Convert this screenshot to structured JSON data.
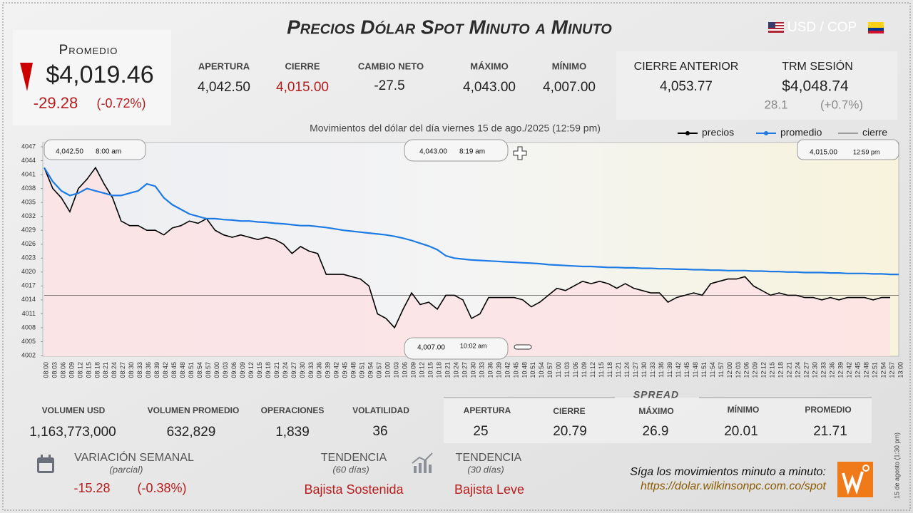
{
  "header": {
    "title": "Precios Dólar Spot Minuto a Minuto",
    "pair": "USD / COP"
  },
  "promedio": {
    "label": "Promedio",
    "value": "$4,019.46",
    "change": "-29.28",
    "change_pct": "(-0.72%)"
  },
  "summary": [
    {
      "label": "APERTURA",
      "value": "4,042.50"
    },
    {
      "label": "CIERRE",
      "value": "4,015.00"
    },
    {
      "label": "CAMBIO NETO",
      "value": "-27.5"
    },
    {
      "label": "MÁXIMO",
      "value": "4,043.00"
    },
    {
      "label": "MÍNIMO",
      "value": "4,007.00"
    }
  ],
  "previous": {
    "label": "CIERRE ANTERIOR",
    "value": "4,053.77"
  },
  "trm": {
    "label": "TRM SESIÓN",
    "value": "$4,048.74",
    "change": "28.1",
    "change_pct": "(+0.7%)"
  },
  "chart_data": {
    "type": "line",
    "title": "Movimientos del dólar del día viernes 15 de ago./2025 (12:59 pm)",
    "x": [
      "08:00",
      "08:03",
      "08:06",
      "08:09",
      "08:12",
      "08:15",
      "08:18",
      "08:21",
      "08:24",
      "08:27",
      "08:30",
      "08:33",
      "08:36",
      "08:39",
      "08:42",
      "08:45",
      "08:48",
      "08:51",
      "08:54",
      "08:57",
      "09:00",
      "09:03",
      "09:06",
      "09:09",
      "09:12",
      "09:15",
      "09:18",
      "09:21",
      "09:24",
      "09:27",
      "09:30",
      "09:33",
      "09:36",
      "09:39",
      "09:42",
      "09:45",
      "09:48",
      "09:51",
      "09:54",
      "09:57",
      "10:00",
      "10:03",
      "10:06",
      "10:09",
      "10:12",
      "10:15",
      "10:18",
      "10:21",
      "10:24",
      "10:27",
      "10:30",
      "10:33",
      "10:36",
      "10:39",
      "10:42",
      "10:45",
      "10:48",
      "10:51",
      "10:54",
      "10:57",
      "11:00",
      "11:03",
      "11:06",
      "11:09",
      "11:12",
      "11:15",
      "11:18",
      "11:21",
      "11:24",
      "11:27",
      "11:30",
      "11:33",
      "11:36",
      "11:39",
      "11:42",
      "11:45",
      "11:48",
      "11:51",
      "11:54",
      "11:57",
      "12:00",
      "12:03",
      "12:06",
      "12:09",
      "12:12",
      "12:15",
      "12:18",
      "12:21",
      "12:24",
      "12:27",
      "12:30",
      "12:33",
      "12:36",
      "12:39",
      "12:42",
      "12:45",
      "12:48",
      "12:51",
      "12:54",
      "12:57",
      "13:00"
    ],
    "series": [
      {
        "name": "precios",
        "color": "#000000",
        "values": [
          4042.5,
          4038,
          4036,
          4033,
          4038,
          4040,
          4042.5,
          4039,
          4036,
          4031,
          4030,
          4030,
          4029,
          4029,
          4028,
          4029.5,
          4030,
          4031,
          4030.5,
          4031.5,
          4029,
          4028,
          4027.5,
          4028,
          4027.5,
          4027,
          4027.5,
          4027,
          4026,
          4024,
          4025.5,
          4024.5,
          4024,
          4019.5,
          4019.5,
          4019.5,
          4019,
          4018.5,
          4017,
          4011,
          4010,
          4008,
          4012,
          4015.5,
          4013,
          4013.5,
          4012,
          4015,
          4015,
          4014,
          4010,
          4011,
          4014.5,
          4014.5,
          4014.5,
          4014.5,
          4014,
          4012.5,
          4013.5,
          4015,
          4016.5,
          4016,
          4017,
          4018,
          4017.5,
          4018,
          4017.5,
          4016.5,
          4017.5,
          4016.5,
          4016,
          4015.5,
          4015.5,
          4013.5,
          4014.5,
          4015,
          4015.5,
          4015,
          4017.5,
          4018,
          4018.5,
          4018.5,
          4019,
          4017,
          4016,
          4015,
          4015.5,
          4015,
          4015,
          4014.5,
          4014.5,
          4014,
          4014.5,
          4014,
          4014.5,
          4014.5,
          4014.5,
          4014,
          4014.5,
          4014.5,
          null
        ]
      },
      {
        "name": "promedio",
        "color": "#1e7be6",
        "values": [
          4042.5,
          4039.5,
          4037.5,
          4036.5,
          4037,
          4038,
          4037.5,
          4037,
          4036.5,
          4036.5,
          4037,
          4037.5,
          4039,
          4038.5,
          4036,
          4034.5,
          4033.5,
          4032.5,
          4032,
          4031.5,
          4031.5,
          4031.3,
          4031.2,
          4031,
          4031,
          4030.8,
          4030.7,
          4030.5,
          4030.4,
          4030.2,
          4030,
          4030,
          4029.8,
          4029.6,
          4029.3,
          4029,
          4028.8,
          4028.6,
          4028.4,
          4028.2,
          4028,
          4027.7,
          4027.3,
          4026.8,
          4026.2,
          4025.6,
          4024.8,
          4023.5,
          4023,
          4022.8,
          4022.6,
          4022.5,
          4022.4,
          4022.3,
          4022.2,
          4022.1,
          4022,
          4021.9,
          4021.8,
          4021.6,
          4021.5,
          4021.4,
          4021.3,
          4021.2,
          4021.2,
          4021.1,
          4021,
          4021,
          4020.9,
          4020.9,
          4020.8,
          4020.8,
          4020.7,
          4020.7,
          4020.6,
          4020.6,
          4020.5,
          4020.5,
          4020.4,
          4020.4,
          4020.3,
          4020.3,
          4020.3,
          4020.2,
          4020.2,
          4020.1,
          4020.1,
          4020,
          4020,
          4019.9,
          4019.9,
          4019.9,
          4019.8,
          4019.8,
          4019.7,
          4019.7,
          4019.7,
          4019.6,
          4019.6,
          4019.5,
          4019.5
        ]
      }
    ],
    "reference_line": {
      "name": "cierre",
      "value": 4015,
      "color": "#555555"
    },
    "area_color": "#fde2e4",
    "ylim": [
      4002,
      4047
    ],
    "yticks": [
      4047,
      4044,
      4041,
      4038,
      4035,
      4032,
      4029,
      4026,
      4023,
      4020,
      4017,
      4014,
      4011,
      4008,
      4005,
      4002
    ],
    "grid": false,
    "legend": "top-right",
    "annotations": [
      {
        "price": "4,042.50",
        "time": "8:00 am"
      },
      {
        "price": "4,043.00",
        "time": "8:19 am"
      },
      {
        "price": "4,015.00",
        "time": "12:59 pm"
      },
      {
        "price": "4,007.00",
        "time": "10:02 am"
      }
    ]
  },
  "stats": [
    {
      "label": "VOLUMEN USD",
      "value": "1,163,773,000"
    },
    {
      "label": "VOLUMEN PROMEDIO",
      "value": "632,829"
    },
    {
      "label": "OPERACIONES",
      "value": "1,839"
    },
    {
      "label": "VOLATILIDAD",
      "value": "36"
    }
  ],
  "spread": {
    "title": "SPREAD",
    "items": [
      {
        "label": "APERTURA",
        "value": "25"
      },
      {
        "label": "CIERRE",
        "value": "20.79"
      },
      {
        "label": "MÁXIMO",
        "value": "26.9"
      },
      {
        "label": "MÍNIMO",
        "value": "20.01"
      },
      {
        "label": "PROMEDIO",
        "value": "21.71"
      }
    ]
  },
  "weekly": {
    "label": "VARIACIÓN SEMANAL",
    "note": "(parcial)",
    "change": "-15.28",
    "change_pct": "(-0.38%)"
  },
  "trend_60": {
    "label": "TENDENCIA",
    "period": "(60 días)",
    "value": "Bajista Sostenida"
  },
  "trend_30": {
    "label": "TENDENCIA",
    "period": "(30 días)",
    "value": "Bajista Leve"
  },
  "footer": {
    "cta": "Síga los movimientos minuto a minuto:",
    "url": "https://dolar.wilkinsonpc.com.co/spot",
    "stamp": "15 de agosto (1:30 pm)"
  }
}
